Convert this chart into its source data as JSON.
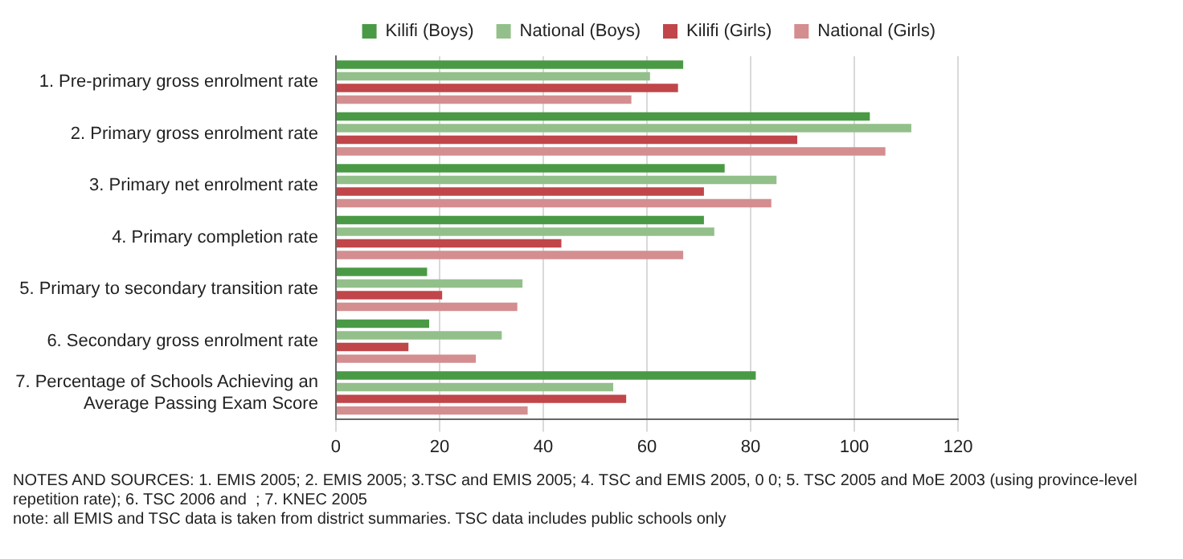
{
  "chart_data": {
    "type": "bar",
    "orientation": "horizontal",
    "categories": [
      "1. Pre-primary gross enrolment rate",
      "2. Primary gross enrolment rate",
      "3. Primary net enrolment rate",
      "4. Primary completion rate",
      "5. Primary to secondary transition rate",
      "6. Secondary gross enrolment rate",
      "7. Percentage of Schools Achieving an Average Passing Exam Score"
    ],
    "series": [
      {
        "name": "Kilifi (Boys)",
        "color": "#4a9a45",
        "values": [
          67,
          103,
          75,
          71,
          17.6,
          18,
          81
        ]
      },
      {
        "name": "National (Boys)",
        "color": "#93c08a",
        "values": [
          60.6,
          111,
          85,
          73,
          36,
          32,
          53.5
        ]
      },
      {
        "name": "Kilifi (Girls)",
        "color": "#c0464a",
        "values": [
          66,
          89,
          71,
          43.5,
          20.5,
          14,
          56
        ]
      },
      {
        "name": "National (Girls)",
        "color": "#d48e90",
        "values": [
          57,
          106,
          84,
          67,
          35,
          27,
          37
        ]
      }
    ],
    "xlim": [
      0,
      120
    ],
    "xticks": [
      0,
      20,
      40,
      60,
      80,
      100,
      120
    ],
    "grid": "x",
    "legend": "top",
    "annotations": [
      "NOTES AND SOURCES: 1. EMIS 2005; 2. EMIS 2005; 3.TSC and EMIS 2005; 4. TSC and EMIS 2005, 0 0; 5. TSC 2005 and MoE 2003 (using province-level repetition rate); 6. TSC 2006 and  ; 7. KNEC 2005",
      "note: all EMIS and TSC data is taken from district summaries. TSC data includes public schools only"
    ]
  }
}
